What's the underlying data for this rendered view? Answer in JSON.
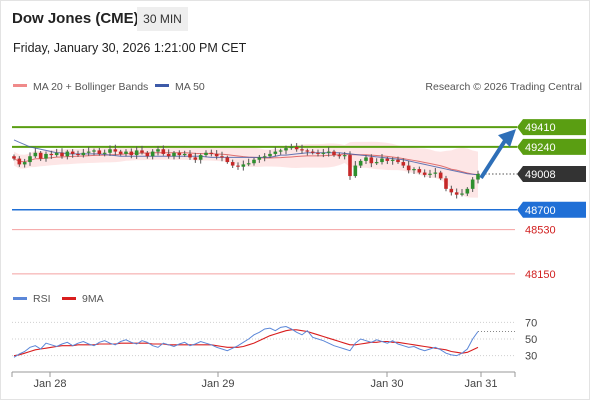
{
  "header": {
    "title": "Dow Jones (CME)",
    "interval": "30 MIN",
    "datetime": "Friday, January 30, 2026 1:21:00 PM CET"
  },
  "legend": {
    "ma20_bb": "MA 20 + Bollinger Bands",
    "ma50": "MA 50",
    "credit": "Research © 2026 Trading Central",
    "rsi": "RSI",
    "rsi_ma": "9MA"
  },
  "colors": {
    "resistance": "#5a9e12",
    "support": "#1f6fd6",
    "current": "#333333",
    "extra_support": "#e66a6a",
    "ma20": "#e07070",
    "bands": "#fde2e2",
    "ma50": "#3d5aa8",
    "rsi": "#5b87d8",
    "rsi_ma": "#d91e1e",
    "arrow": "#2e6fb8"
  },
  "chart_data": [
    {
      "type": "candlestick",
      "ylim": [
        48080,
        49540
      ],
      "x_ticks": [
        "Jan 28",
        "Jan 29",
        "Jan 30",
        "Jan 31"
      ],
      "levels": [
        {
          "value": 49410,
          "label": "49410",
          "kind": "resistance"
        },
        {
          "value": 49240,
          "label": "49240",
          "kind": "resistance"
        },
        {
          "value": 49008,
          "label": "49008",
          "kind": "current"
        },
        {
          "value": 48700,
          "label": "48700",
          "kind": "support"
        },
        {
          "value": 48530,
          "label": "48530",
          "kind": "extra_support"
        },
        {
          "value": 48150,
          "label": "48150",
          "kind": "extra_support"
        }
      ],
      "close_series": [
        49140,
        49090,
        49110,
        49160,
        49190,
        49140,
        49180,
        49170,
        49190,
        49160,
        49200,
        49180,
        49170,
        49190,
        49200,
        49210,
        49180,
        49190,
        49220,
        49200,
        49180,
        49200,
        49170,
        49210,
        49190,
        49160,
        49200,
        49220,
        49180,
        49160,
        49190,
        49170,
        49180,
        49150,
        49130,
        49170,
        49190,
        49180,
        49160,
        49150,
        49110,
        49080,
        49070,
        49090,
        49100,
        49130,
        49150,
        49160,
        49180,
        49200,
        49210,
        49230,
        49240,
        49220,
        49210,
        49200,
        49190,
        49180,
        49190,
        49200,
        49170,
        49160,
        49170,
        48990,
        49080,
        49120,
        49150,
        49100,
        49110,
        49140,
        49120,
        49130,
        49110,
        49080,
        49040,
        49050,
        49020,
        49000,
        49010,
        49020,
        48970,
        48880,
        48850,
        48830,
        48840,
        48880,
        48960,
        49008
      ],
      "ma50_series": [
        49300,
        49280,
        49260,
        49240,
        49230,
        49220,
        49210,
        49200,
        49190,
        49190,
        49180,
        49180,
        49180,
        49180,
        49180,
        49180,
        49180,
        49175,
        49170,
        49165,
        49160,
        49160,
        49160,
        49160,
        49160,
        49160,
        49160,
        49160,
        49160,
        49160,
        49160,
        49160,
        49160,
        49160,
        49160,
        49160,
        49155,
        49150,
        49150,
        49150,
        49150,
        49150,
        49150,
        49150,
        49150,
        49150,
        49150,
        49150,
        49150,
        49160,
        49170,
        49170,
        49175,
        49180,
        49185,
        49190,
        49190,
        49190,
        49190,
        49190,
        49190,
        49190,
        49185,
        49180,
        49175,
        49170,
        49165,
        49160,
        49155,
        49150,
        49145,
        49140,
        49135,
        49130,
        49120,
        49110,
        49100,
        49090,
        49080,
        49070,
        49060,
        49050,
        49040,
        49030,
        49020,
        49010,
        49005,
        49000
      ]
    },
    {
      "type": "line",
      "title": "RSI",
      "ylim": [
        20,
        80
      ],
      "y_ticks": [
        "70",
        "50",
        "30"
      ],
      "rsi_series": [
        28,
        32,
        35,
        40,
        42,
        38,
        45,
        43,
        41,
        44,
        46,
        42,
        45,
        47,
        44,
        42,
        46,
        48,
        45,
        43,
        47,
        49,
        46,
        44,
        48,
        46,
        42,
        40,
        45,
        43,
        41,
        44,
        46,
        42,
        44,
        47,
        45,
        43,
        40,
        38,
        36,
        39,
        42,
        46,
        50,
        55,
        58,
        62,
        63,
        60,
        64,
        65,
        62,
        58,
        55,
        60,
        52,
        50,
        48,
        45,
        42,
        40,
        38,
        36,
        45,
        50,
        48,
        46,
        49,
        47,
        45,
        48,
        44,
        42,
        40,
        41,
        38,
        36,
        38,
        40,
        37,
        33,
        31,
        30,
        33,
        38,
        50,
        59
      ],
      "rsi_ma_series": [
        30,
        31,
        33,
        35,
        37,
        38,
        39,
        40,
        41,
        42,
        42,
        42,
        43,
        43,
        43,
        43,
        44,
        44,
        44,
        44,
        45,
        45,
        45,
        45,
        45,
        45,
        44,
        44,
        44,
        43,
        43,
        43,
        43,
        43,
        43,
        43,
        43,
        43,
        42,
        41,
        40,
        40,
        40,
        41,
        43,
        45,
        48,
        51,
        54,
        56,
        58,
        60,
        61,
        61,
        60,
        59,
        57,
        55,
        53,
        51,
        49,
        47,
        45,
        43,
        43,
        44,
        45,
        46,
        46,
        47,
        47,
        46,
        46,
        45,
        44,
        43,
        42,
        41,
        40,
        39,
        38,
        37,
        35,
        34,
        33,
        34,
        37,
        40
      ]
    }
  ]
}
